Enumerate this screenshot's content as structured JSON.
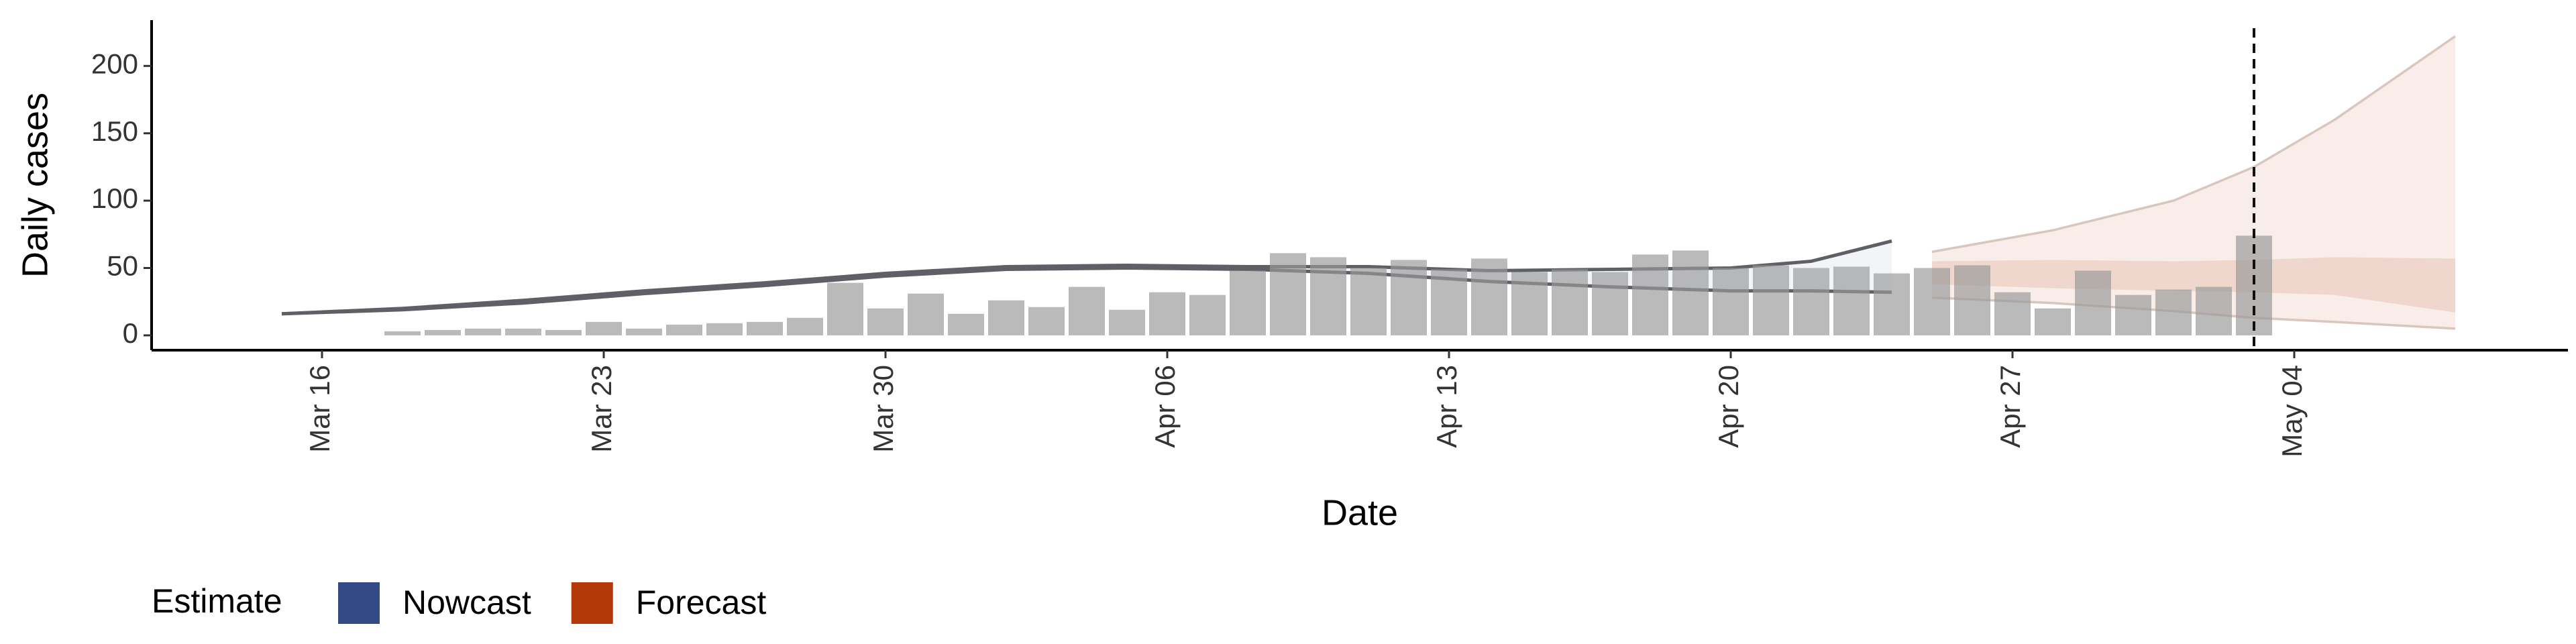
{
  "chart_data": {
    "type": "bar",
    "xlabel": "Date",
    "ylabel": "Daily cases",
    "legend_title": "Estimate",
    "categories": [
      "Mar 18",
      "Mar 19",
      "Mar 20",
      "Mar 21",
      "Mar 22",
      "Mar 23",
      "Mar 24",
      "Mar 25",
      "Mar 26",
      "Mar 27",
      "Mar 28",
      "Mar 29",
      "Mar 30",
      "Mar 31",
      "Apr 01",
      "Apr 02",
      "Apr 03",
      "Apr 04",
      "Apr 05",
      "Apr 06",
      "Apr 07",
      "Apr 08",
      "Apr 09",
      "Apr 10",
      "Apr 11",
      "Apr 12",
      "Apr 13",
      "Apr 14",
      "Apr 15",
      "Apr 16",
      "Apr 17",
      "Apr 18",
      "Apr 19",
      "Apr 20",
      "Apr 21",
      "Apr 22",
      "Apr 23",
      "Apr 24",
      "Apr 25",
      "Apr 26",
      "Apr 27",
      "Apr 28",
      "Apr 29",
      "Apr 30",
      "May 01",
      "May 02",
      "May 03"
    ],
    "values": [
      3,
      4,
      5,
      5,
      4,
      10,
      5,
      8,
      9,
      10,
      13,
      39,
      20,
      31,
      16,
      26,
      21,
      36,
      19,
      32,
      30,
      48,
      61,
      58,
      50,
      56,
      49,
      57,
      47,
      49,
      47,
      60,
      63,
      50,
      52,
      50,
      51,
      46,
      50,
      52,
      32,
      20,
      48,
      30,
      34,
      36,
      74
    ],
    "color": "#9a9a9a",
    "series": [
      {
        "name": "Nowcast",
        "color": "#334a87",
        "x": [
          "Mar 15",
          "Mar 18",
          "Mar 21",
          "Mar 24",
          "Mar 27",
          "Mar 30",
          "Apr 02",
          "Apr 05",
          "Apr 08",
          "Apr 11",
          "Apr 14",
          "Apr 17",
          "Apr 20",
          "Apr 22",
          "Apr 24"
        ],
        "lower": [
          16,
          19,
          24,
          31,
          37,
          44,
          49,
          50,
          49,
          46,
          40,
          36,
          33,
          33,
          32
        ],
        "upper": [
          16,
          20,
          26,
          33,
          39,
          46,
          51,
          52,
          51,
          51,
          48,
          49,
          50,
          55,
          70
        ]
      },
      {
        "name": "Forecast",
        "color": "#b33a08",
        "x": [
          "Apr 25",
          "Apr 28",
          "May 01",
          "May 03",
          "May 05",
          "May 08"
        ],
        "lower": [
          28,
          24,
          18,
          13,
          10,
          5
        ],
        "upper": [
          62,
          78,
          100,
          125,
          160,
          222
        ],
        "inner_lower": [
          38,
          35,
          33,
          32,
          30,
          17
        ],
        "inner_upper": [
          55,
          56,
          55,
          56,
          58,
          57
        ]
      }
    ],
    "vline": "May 03",
    "xlim": [
      "Mar 12",
      "May 11"
    ],
    "xticks": [
      "Mar 16",
      "Mar 23",
      "Mar 30",
      "Apr 06",
      "Apr 13",
      "Apr 20",
      "Apr 27",
      "May 04"
    ],
    "ylim": [
      -11,
      234
    ],
    "yticks": [
      0,
      50,
      100,
      150,
      200
    ]
  }
}
